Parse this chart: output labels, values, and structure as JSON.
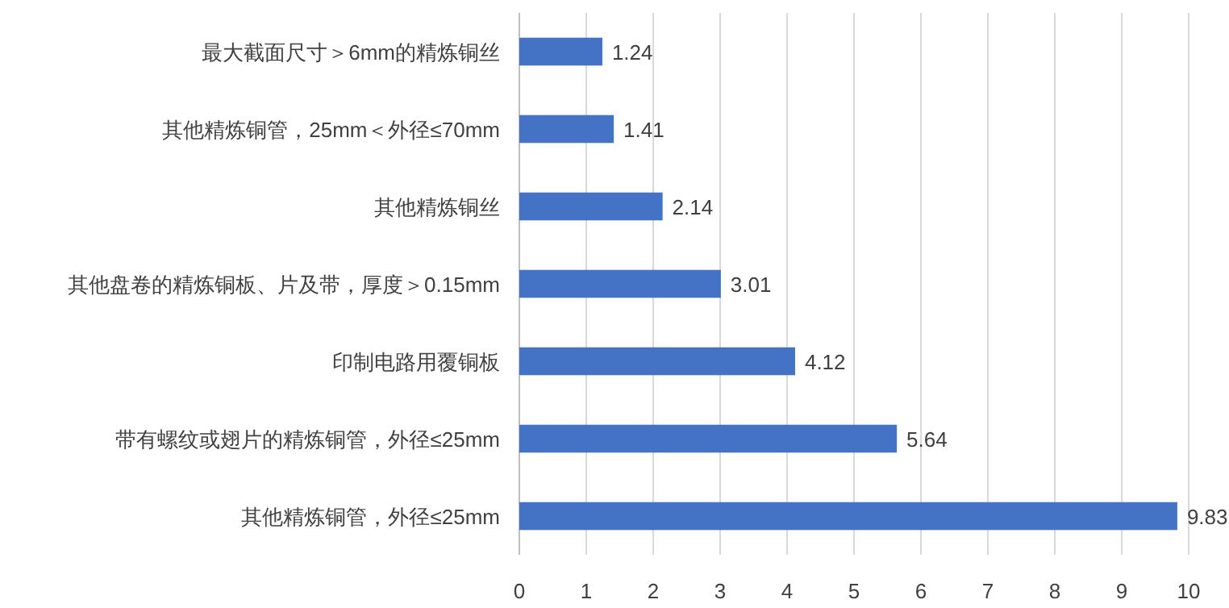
{
  "chart_data": {
    "type": "bar",
    "orientation": "horizontal",
    "categories": [
      "最大截面尺寸＞6mm的精炼铜丝",
      "其他精炼铜管，25mm＜外径≤70mm",
      "其他精炼铜丝",
      "其他盘卷的精炼铜板、片及带，厚度＞0.15mm",
      "印制电路用覆铜板",
      "带有螺纹或翅片的精炼铜管，外径≤25mm",
      "其他精炼铜管，外径≤25mm"
    ],
    "values": [
      1.24,
      1.41,
      2.14,
      3.01,
      4.12,
      5.64,
      9.83
    ],
    "color": "#4472c4",
    "xlim": [
      0,
      10
    ],
    "xticks": [
      0,
      1,
      2,
      3,
      4,
      5,
      6,
      7,
      8,
      9,
      10
    ],
    "grid": "x",
    "data_labels": true
  }
}
